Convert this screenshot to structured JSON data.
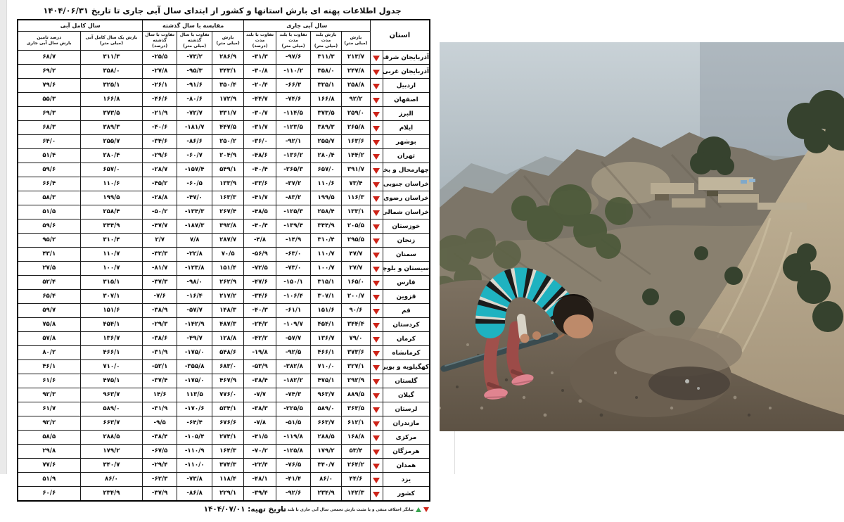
{
  "page": {
    "title": "جدول اطلاعات پهنه ای بارش استانها و کشور از ابتدای سال آبی جاری تا تاریخ ۱۴۰۴/۰۶/۳۱",
    "footer": {
      "prepared_date_label": "تاریخ تهیه: ۱۴۰۴/۰۷/۰۱",
      "legend_text": "بیانگر اختلاف منفی و یا مثبت بارش تجمعی سال آبی جاری با بلند مدت"
    }
  },
  "colors": {
    "indicator_down": "#ce2318",
    "indicator_up": "#3ba551",
    "table_border": "#1b1b1b"
  },
  "table": {
    "columns": {
      "province": "استان",
      "groups": [
        {
          "label": "سال آبی جاری",
          "subs": [
            "بارش\n(میلی متر)",
            "بارش بلند مدت\n(میلی متر)",
            "تفاوت با بلند مدت\n(میلی متر)",
            "تفاوت با بلند مدت\n(درصد)"
          ]
        },
        {
          "label": "مقایسه با سال گذشته",
          "subs": [
            "بارش\n(میلی متر)",
            "تفاوت با سال گذشته\n(میلی متر)",
            "تفاوت با سال گذشته\n(درصد)"
          ]
        },
        {
          "label": "سال کامل آبی",
          "subs": [
            "بارش یک سال کامل آبی\n(میلی متر)",
            "درصد تامین\nبارش سال آبی جاری"
          ]
        }
      ]
    },
    "rows": [
      {
        "name": "آذربایجان شرقی",
        "indicator": "down",
        "values": [
          "۲۱۳/۷",
          "۳۱۱/۳",
          "-۹۷/۶",
          "-۳۱/۳",
          "۲۸۶/۹",
          "-۷۳/۲",
          "-۲۵/۵",
          "۳۱۱/۳",
          "۶۸/۷"
        ]
      },
      {
        "name": "آذربایجان غربی",
        "indicator": "down",
        "values": [
          "۲۴۷/۸",
          "۳۵۸/۰",
          "-۱۱۰/۲",
          "-۳۰/۸",
          "۳۴۳/۱",
          "-۹۵/۳",
          "-۲۷/۸",
          "۳۵۸/۰",
          "۶۹/۲"
        ]
      },
      {
        "name": "اردبیل",
        "indicator": "down",
        "values": [
          "۲۵۸/۸",
          "۳۲۵/۱",
          "-۶۶/۳",
          "-۲۰/۴",
          "۳۵۰/۴",
          "-۹۱/۶",
          "-۲۶/۱",
          "۳۲۵/۱",
          "۷۹/۶"
        ]
      },
      {
        "name": "اصفهان",
        "indicator": "down",
        "values": [
          "۹۲/۲",
          "۱۶۶/۸",
          "-۷۴/۶",
          "-۴۴/۷",
          "۱۷۲/۹",
          "-۸۰/۶",
          "-۴۶/۶",
          "۱۶۶/۸",
          "۵۵/۳"
        ]
      },
      {
        "name": "البرز",
        "indicator": "down",
        "values": [
          "۲۵۹/۰",
          "۳۷۳/۵",
          "-۱۱۴/۵",
          "-۳۰/۷",
          "۳۳۱/۷",
          "-۷۲/۷",
          "-۲۱/۹",
          "۳۷۳/۵",
          "۶۹/۳"
        ]
      },
      {
        "name": "ایلام",
        "indicator": "down",
        "values": [
          "۲۶۵/۸",
          "۳۸۹/۳",
          "-۱۲۳/۵",
          "-۳۱/۷",
          "۴۴۷/۵",
          "-۱۸۱/۷",
          "-۴۰/۶",
          "۳۸۹/۳",
          "۶۸/۳"
        ]
      },
      {
        "name": "بوشهر",
        "indicator": "down",
        "values": [
          "۱۶۳/۶",
          "۲۵۵/۷",
          "-۹۲/۱",
          "-۳۶/۰",
          "۲۵۰/۲",
          "-۸۶/۶",
          "-۳۴/۶",
          "۲۵۵/۷",
          "۶۴/۰"
        ]
      },
      {
        "name": "تهران",
        "indicator": "down",
        "values": [
          "۱۴۴/۲",
          "۲۸۰/۴",
          "-۱۳۶/۲",
          "-۴۸/۶",
          "۲۰۴/۹",
          "-۶۰/۷",
          "-۲۹/۶",
          "۲۸۰/۴",
          "۵۱/۴"
        ]
      },
      {
        "name": "چهارمحال و بختیاری",
        "indicator": "down",
        "values": [
          "۳۹۱/۷",
          "۶۵۷/۰",
          "-۲۶۵/۳",
          "-۴۰/۴",
          "۵۴۹/۱",
          "-۱۵۷/۴",
          "-۲۸/۷",
          "۶۵۷/۰",
          "۵۹/۶"
        ]
      },
      {
        "name": "خراسان جنوبی",
        "indicator": "down",
        "values": [
          "۷۳/۴",
          "۱۱۰/۶",
          "-۳۷/۲",
          "-۳۳/۶",
          "۱۳۳/۹",
          "-۶۰/۵",
          "-۴۵/۲",
          "۱۱۰/۶",
          "۶۶/۴"
        ]
      },
      {
        "name": "خراسان رضوی",
        "indicator": "down",
        "values": [
          "۱۱۶/۳",
          "۱۹۹/۵",
          "-۸۳/۲",
          "-۴۱/۷",
          "۱۶۳/۳",
          "-۴۷/۰",
          "-۲۸/۸",
          "۱۹۹/۵",
          "۵۸/۳"
        ]
      },
      {
        "name": "خراسان شمالی",
        "indicator": "down",
        "values": [
          "۱۳۳/۱",
          "۲۵۸/۴",
          "-۱۲۵/۳",
          "-۴۸/۵",
          "۲۶۷/۴",
          "-۱۳۴/۳",
          "-۵۰/۲",
          "۲۵۸/۴",
          "۵۱/۵"
        ]
      },
      {
        "name": "خوزستان",
        "indicator": "down",
        "values": [
          "۲۰۵/۵",
          "۳۴۴/۹",
          "-۱۳۹/۴",
          "-۴۰/۴",
          "۳۹۲/۸",
          "-۱۸۷/۳",
          "-۴۷/۷",
          "۳۴۴/۹",
          "۵۹/۶"
        ]
      },
      {
        "name": "زنجان",
        "indicator": "down",
        "values": [
          "۲۹۵/۵",
          "۳۱۰/۴",
          "-۱۴/۹",
          "-۴/۸",
          "۲۸۷/۷",
          "۷/۸",
          "۲/۷",
          "۳۱۰/۴",
          "۹۵/۲"
        ]
      },
      {
        "name": "سمنان",
        "indicator": "down",
        "values": [
          "۴۷/۷",
          "۱۱۰/۷",
          "-۶۳/۰",
          "-۵۶/۹",
          "۷۰/۵",
          "-۲۲/۸",
          "-۳۲/۳",
          "۱۱۰/۷",
          "۴۳/۱"
        ]
      },
      {
        "name": "سیستان و بلوچستان",
        "indicator": "down",
        "values": [
          "۲۷/۷",
          "۱۰۰/۷",
          "-۷۳/۰",
          "-۷۲/۵",
          "۱۵۱/۴",
          "-۱۲۳/۸",
          "-۸۱/۷",
          "۱۰۰/۷",
          "۲۷/۵"
        ]
      },
      {
        "name": "فارس",
        "indicator": "down",
        "values": [
          "۱۶۵/۰",
          "۳۱۵/۱",
          "-۱۵۰/۱",
          "-۴۷/۶",
          "۲۶۲/۹",
          "-۹۸/۰",
          "-۳۷/۳",
          "۳۱۵/۱",
          "۵۲/۴"
        ]
      },
      {
        "name": "قزوین",
        "indicator": "down",
        "values": [
          "۲۰۰/۷",
          "۳۰۷/۱",
          "-۱۰۶/۴",
          "-۳۴/۶",
          "۲۱۷/۲",
          "-۱۶/۴",
          "-۷/۶",
          "۳۰۷/۱",
          "۶۵/۴"
        ]
      },
      {
        "name": "قم",
        "indicator": "down",
        "values": [
          "۹۰/۶",
          "۱۵۱/۶",
          "-۶۱/۱",
          "-۴۰/۳",
          "۱۴۸/۳",
          "-۵۷/۷",
          "-۳۸/۹",
          "۱۵۱/۶",
          "۵۹/۷"
        ]
      },
      {
        "name": "کردستان",
        "indicator": "down",
        "values": [
          "۳۴۴/۴",
          "۴۵۴/۱",
          "-۱۰۹/۷",
          "-۲۴/۲",
          "۴۸۷/۳",
          "-۱۴۲/۹",
          "-۲۹/۳",
          "۴۵۴/۱",
          "۷۵/۸"
        ]
      },
      {
        "name": "کرمان",
        "indicator": "down",
        "values": [
          "۷۹/۰",
          "۱۳۶/۷",
          "-۵۷/۷",
          "-۴۲/۲",
          "۱۲۸/۸",
          "-۴۹/۷",
          "-۳۸/۶",
          "۱۳۶/۷",
          "۵۷/۸"
        ]
      },
      {
        "name": "کرمانشاه",
        "indicator": "down",
        "values": [
          "۳۷۳/۶",
          "۴۶۶/۱",
          "-۹۲/۵",
          "-۱۹/۸",
          "۵۴۸/۶",
          "-۱۷۵/۰",
          "-۳۱/۹",
          "۴۶۶/۱",
          "۸۰/۲"
        ]
      },
      {
        "name": "کهگیلویه و بویراحمد",
        "indicator": "down",
        "values": [
          "۳۲۷/۱",
          "۷۱۰/۰",
          "-۳۸۲/۸",
          "-۵۳/۹",
          "۶۸۳/۰",
          "-۳۵۵/۸",
          "-۵۲/۱",
          "۷۱۰/۰",
          "۴۶/۱"
        ]
      },
      {
        "name": "گلستان",
        "indicator": "down",
        "values": [
          "۲۹۲/۹",
          "۴۷۵/۱",
          "-۱۸۲/۲",
          "-۳۸/۴",
          "۴۶۷/۹",
          "-۱۷۵/۰",
          "-۳۷/۴",
          "۴۷۵/۱",
          "۶۱/۶"
        ]
      },
      {
        "name": "گیلان",
        "indicator": "down",
        "values": [
          "۸۸۹/۵",
          "۹۶۳/۷",
          "-۷۴/۳",
          "-۷/۷",
          "۷۷۶/۰",
          "۱۱۳/۵",
          "۱۴/۶",
          "۹۶۳/۷",
          "۹۲/۳"
        ]
      },
      {
        "name": "لرستان",
        "indicator": "down",
        "values": [
          "۳۶۳/۵",
          "۵۸۹/۰",
          "-۲۲۵/۵",
          "-۳۸/۳",
          "۵۳۴/۱",
          "-۱۷۰/۶",
          "-۳۱/۹",
          "۵۸۹/۰",
          "۶۱/۷"
        ]
      },
      {
        "name": "مازندران",
        "indicator": "down",
        "values": [
          "۶۱۲/۱",
          "۶۶۳/۷",
          "-۵۱/۵",
          "-۷/۸",
          "۶۷۶/۶",
          "-۶۴/۴",
          "-۹/۵",
          "۶۶۳/۷",
          "۹۲/۲"
        ]
      },
      {
        "name": "مرکزی",
        "indicator": "down",
        "values": [
          "۱۶۸/۸",
          "۲۸۸/۵",
          "-۱۱۹/۸",
          "-۴۱/۵",
          "۲۷۴/۱",
          "-۱۰۵/۴",
          "-۳۸/۴",
          "۲۸۸/۵",
          "۵۸/۵"
        ]
      },
      {
        "name": "هرمزگان",
        "indicator": "down",
        "values": [
          "۵۳/۴",
          "۱۷۹/۲",
          "-۱۲۵/۸",
          "-۷۰/۲",
          "۱۶۴/۳",
          "-۱۱۰/۹",
          "-۶۷/۵",
          "۱۷۹/۲",
          "۲۹/۸"
        ]
      },
      {
        "name": "همدان",
        "indicator": "down",
        "values": [
          "۲۶۴/۲",
          "۳۴۰/۷",
          "-۷۶/۵",
          "-۲۲/۴",
          "۳۷۴/۳",
          "-۱۱۰/۰",
          "-۲۹/۴",
          "۳۴۰/۷",
          "۷۷/۶"
        ]
      },
      {
        "name": "یزد",
        "indicator": "down",
        "values": [
          "۴۴/۶",
          "۸۶/۰",
          "-۴۱/۴",
          "-۴۸/۱",
          "۱۱۸/۴",
          "-۷۳/۸",
          "-۶۲/۳",
          "۸۶/۰",
          "۵۱/۹"
        ]
      },
      {
        "name": "کشور",
        "indicator": "down",
        "values": [
          "۱۴۲/۳",
          "۲۳۴/۹",
          "-۹۲/۶",
          "-۳۹/۴",
          "۲۲۹/۱",
          "-۸۶/۸",
          "-۳۷/۹",
          "۲۳۴/۹",
          "۶۰/۶"
        ]
      }
    ]
  }
}
